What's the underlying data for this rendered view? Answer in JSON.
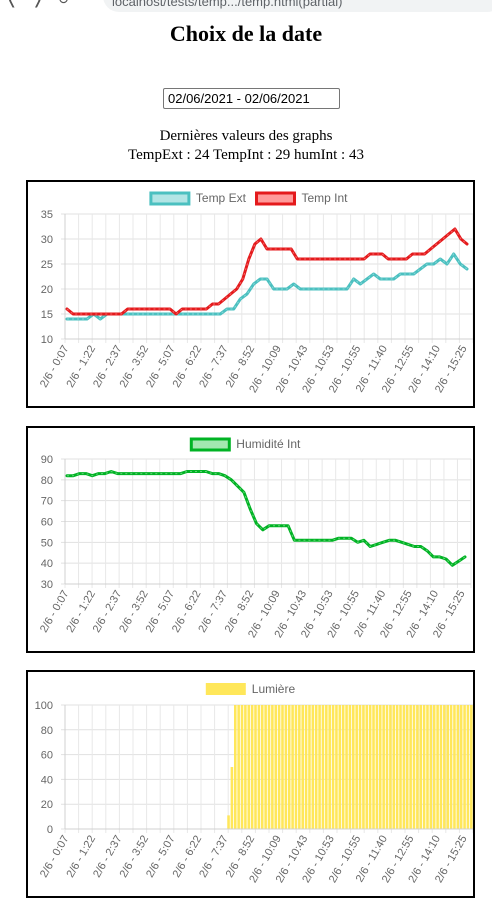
{
  "browser": {
    "url": "localhost/tests/temp.../temp.html(partial)"
  },
  "page": {
    "title": "Choix de la date",
    "date_range": "02/06/2021 - 02/06/2021",
    "last_values_title": "Dernières valeurs des graphs",
    "last_values_line": "TempExt : 24 TempInt : 29 humInt : 43"
  },
  "chart_data": [
    {
      "type": "line",
      "title": "",
      "xlabel": "",
      "ylabel": "",
      "ylim": [
        10,
        35
      ],
      "yticks": [
        10,
        15,
        20,
        25,
        30,
        35
      ],
      "grid": true,
      "legend_position": "top-center",
      "tick_labels": [
        "2/6 - 0:07",
        "2/6 - 1:22",
        "2/6 - 2:37",
        "2/6 - 3:52",
        "2/6 - 5:07",
        "2/6 - 6:22",
        "2/6 - 7:37",
        "2/6 - 8:52",
        "2/6 - 10:09",
        "2/6 - 10:43",
        "2/6 - 10:53",
        "2/6 - 10:55",
        "2/6 - 11:40",
        "2/6 - 12:55",
        "2/6 - 14:10",
        "2/6 - 15:25"
      ],
      "series": [
        {
          "name": "Temp Ext",
          "color": "#4bc0c0",
          "fill": "#b2e5e5",
          "values": [
            14,
            14,
            14,
            14,
            15,
            14,
            15,
            15,
            15,
            15,
            15,
            15,
            15,
            15,
            15,
            15,
            15,
            15,
            15,
            15,
            15,
            15,
            15,
            15,
            16,
            16,
            18,
            19,
            21,
            22,
            22,
            20,
            20,
            20,
            21,
            20,
            20,
            20,
            20,
            20,
            20,
            20,
            20,
            22,
            21,
            22,
            23,
            22,
            22,
            22,
            23,
            23,
            23,
            24,
            25,
            25,
            26,
            25,
            27,
            25,
            24
          ]
        },
        {
          "name": "Temp Int",
          "color": "#e41a1c",
          "fill": "#ff9a9a",
          "values": [
            16,
            15,
            15,
            15,
            15,
            15,
            15,
            15,
            15,
            15,
            16,
            16,
            16,
            16,
            16,
            16,
            16,
            16,
            15,
            16,
            16,
            16,
            16,
            16,
            17,
            17,
            18,
            19,
            20,
            22,
            26,
            29,
            30,
            28,
            28,
            28,
            28,
            28,
            26,
            26,
            26,
            26,
            26,
            26,
            26,
            26,
            26,
            26,
            26,
            26,
            27,
            27,
            27,
            26,
            26,
            26,
            26,
            27,
            27,
            27,
            28,
            29,
            30,
            31,
            32,
            30,
            29
          ]
        }
      ]
    },
    {
      "type": "line",
      "title": "",
      "xlabel": "",
      "ylabel": "",
      "ylim": [
        30,
        90
      ],
      "yticks": [
        30,
        40,
        50,
        60,
        70,
        80,
        90
      ],
      "grid": true,
      "legend_position": "top-center",
      "tick_labels": [
        "2/6 - 0:07",
        "2/6 - 1:22",
        "2/6 - 2:37",
        "2/6 - 3:52",
        "2/6 - 5:07",
        "2/6 - 6:22",
        "2/6 - 7:37",
        "2/6 - 8:52",
        "2/6 - 10:09",
        "2/6 - 10:43",
        "2/6 - 10:53",
        "2/6 - 10:55",
        "2/6 - 11:40",
        "2/6 - 12:55",
        "2/6 - 14:10",
        "2/6 - 15:25"
      ],
      "series": [
        {
          "name": "Humidité Int",
          "color": "#00b324",
          "fill": "#a3e8b0",
          "values": [
            82,
            82,
            83,
            83,
            82,
            83,
            83,
            84,
            83,
            83,
            83,
            83,
            83,
            83,
            83,
            83,
            83,
            83,
            83,
            84,
            84,
            84,
            84,
            83,
            83,
            82,
            80,
            77,
            74,
            66,
            59,
            56,
            58,
            58,
            58,
            58,
            51,
            51,
            51,
            51,
            51,
            51,
            51,
            52,
            52,
            52,
            50,
            51,
            48,
            49,
            50,
            51,
            51,
            50,
            49,
            48,
            48,
            46,
            43,
            43,
            42,
            39,
            41,
            43
          ]
        }
      ]
    },
    {
      "type": "bar",
      "title": "",
      "xlabel": "",
      "ylabel": "",
      "ylim": [
        0,
        100
      ],
      "yticks": [
        0,
        20,
        40,
        60,
        80,
        100
      ],
      "grid": true,
      "legend_position": "top-center",
      "tick_labels": [
        "2/6 - 0:07",
        "2/6 - 1:22",
        "2/6 - 2:37",
        "2/6 - 3:52",
        "2/6 - 5:07",
        "2/6 - 6:22",
        "2/6 - 7:37",
        "2/6 - 8:52",
        "2/6 - 10:09",
        "2/6 - 10:43",
        "2/6 - 10:53",
        "2/6 - 10:55",
        "2/6 - 11:40",
        "2/6 - 12:55",
        "2/6 - 14:10",
        "2/6 - 15:25"
      ],
      "series": [
        {
          "name": "Lumière",
          "color": "#ffe75a",
          "values": [
            0,
            0,
            0,
            0,
            0,
            0,
            0,
            0,
            0,
            0,
            0,
            0,
            0,
            0,
            0,
            0,
            0,
            0,
            0,
            0,
            0,
            0,
            0,
            0,
            0,
            0,
            0,
            0,
            0,
            0,
            0,
            0,
            0,
            0,
            0,
            0,
            0,
            0,
            0,
            0,
            0,
            0,
            0,
            0,
            0,
            0,
            0,
            0,
            11,
            50,
            100,
            100,
            100,
            100,
            100,
            100,
            100,
            100,
            100,
            100,
            100,
            100,
            100,
            100,
            100,
            100,
            100,
            100,
            100,
            100,
            100,
            100,
            100,
            100,
            100,
            100,
            100,
            100,
            100,
            100,
            100,
            100,
            100,
            100,
            100,
            100,
            100,
            100,
            100,
            100,
            100,
            100,
            100,
            100,
            100,
            100,
            100,
            100,
            100,
            100,
            100,
            100,
            100,
            100,
            100,
            100,
            100,
            100,
            100,
            100,
            100,
            100,
            100,
            100,
            100,
            100,
            100,
            100,
            100,
            100,
            100
          ]
        }
      ]
    }
  ]
}
